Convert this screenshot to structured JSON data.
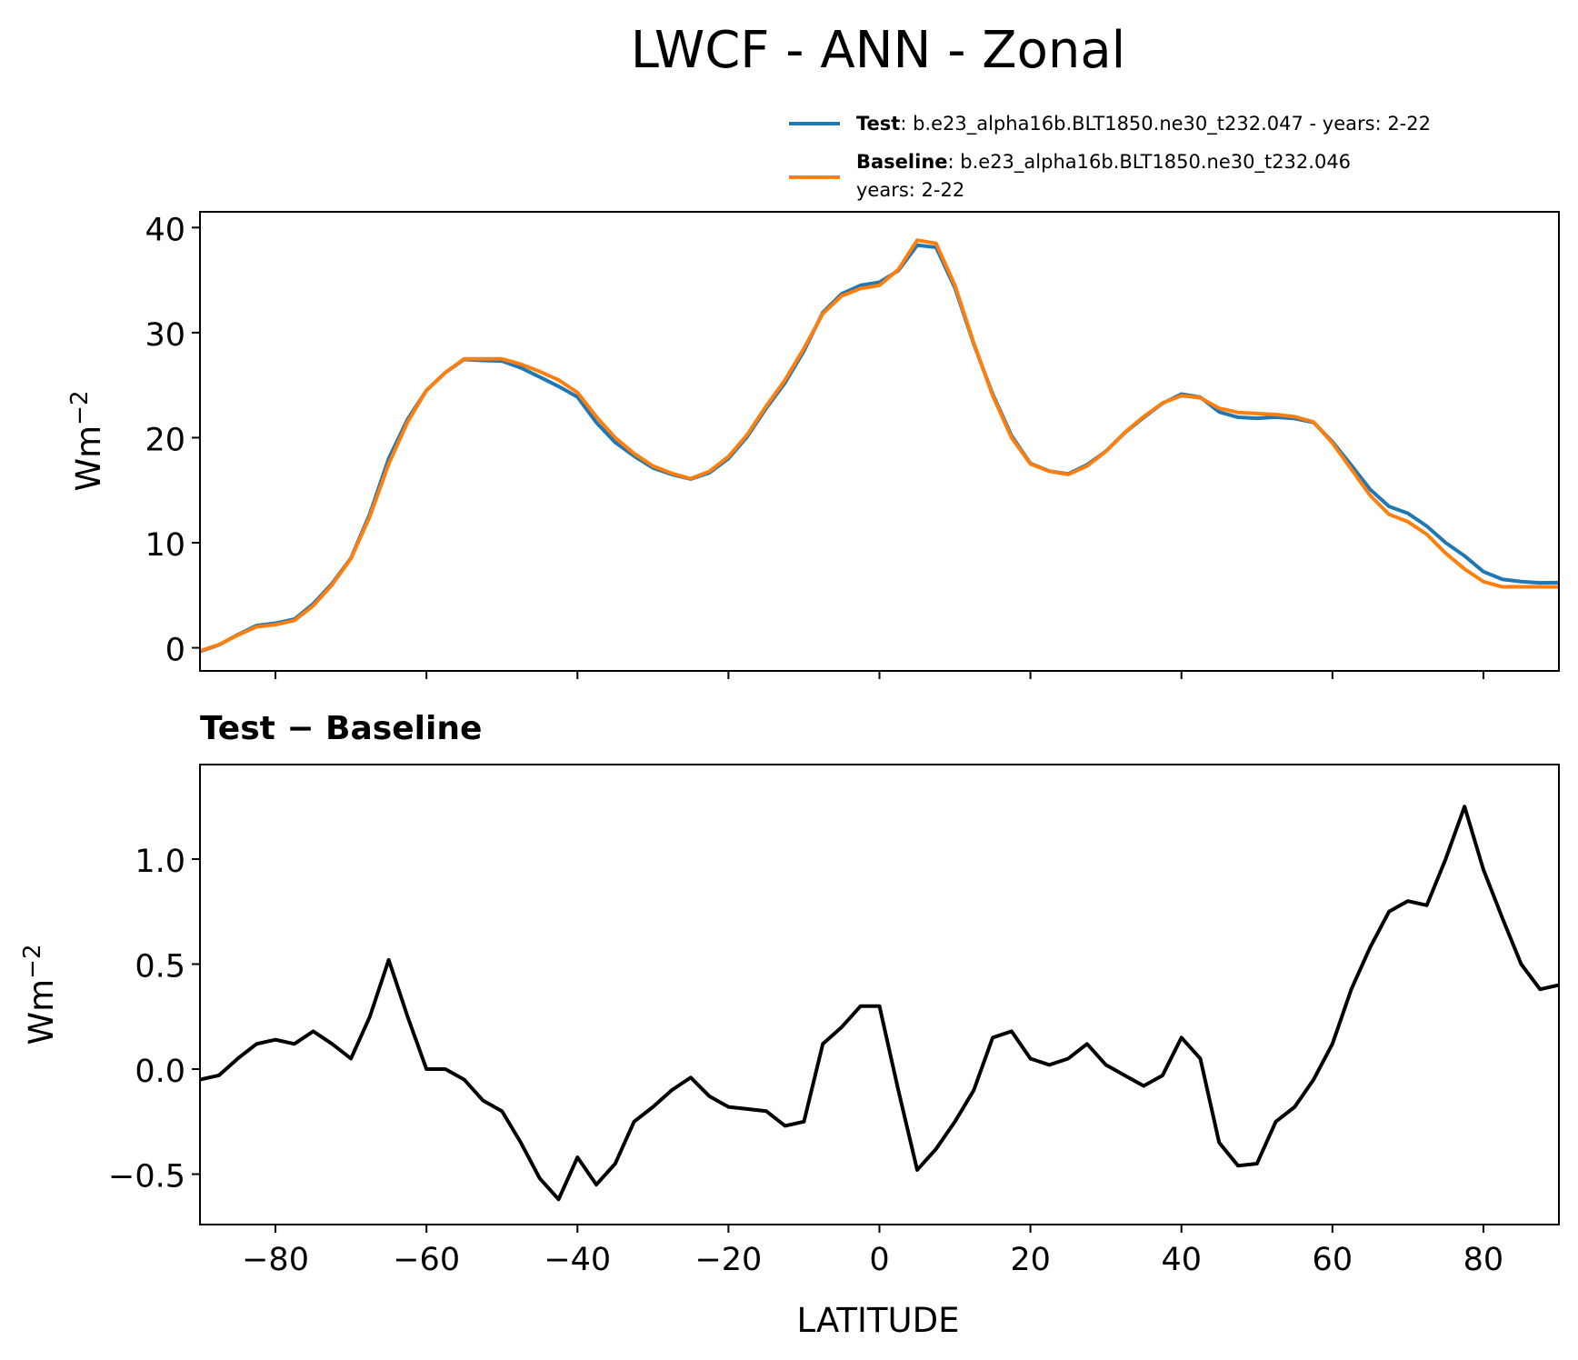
{
  "chart_data": [
    {
      "type": "line",
      "title": "LWCF - ANN - Zonal",
      "ylabel": "Wm",
      "ylabel_sup": "−2",
      "x": [
        -90,
        -87.5,
        -85,
        -82.5,
        -80,
        -77.5,
        -75,
        -72.5,
        -70,
        -67.5,
        -65,
        -62.5,
        -60,
        -57.5,
        -55,
        -52.5,
        -50,
        -47.5,
        -45,
        -42.5,
        -40,
        -37.5,
        -35,
        -32.5,
        -30,
        -27.5,
        -25,
        -22.5,
        -20,
        -17.5,
        -15,
        -12.5,
        -10,
        -7.5,
        -5,
        -2.5,
        0,
        2.5,
        5,
        7.5,
        10,
        12.5,
        15,
        17.5,
        20,
        22.5,
        25,
        27.5,
        30,
        32.5,
        35,
        37.5,
        40,
        42.5,
        45,
        47.5,
        50,
        52.5,
        55,
        57.5,
        60,
        62.5,
        65,
        67.5,
        70,
        72.5,
        75,
        77.5,
        80,
        82.5,
        85,
        87.5,
        90
      ],
      "series": [
        {
          "name": "Test",
          "description": [
            ": b.e23_alpha16b.BLT1850.ne30_t232.047 - years: 2-22"
          ],
          "color": "#1f77b4",
          "values": [
            -0.35,
            0.27,
            1.25,
            2.12,
            2.34,
            2.72,
            4.18,
            6.12,
            8.55,
            12.75,
            18.02,
            21.75,
            24.5,
            26.2,
            27.45,
            27.35,
            27.3,
            26.65,
            25.78,
            24.88,
            23.88,
            21.45,
            19.55,
            18.25,
            17.12,
            16.5,
            16.06,
            16.67,
            18.02,
            20.11,
            22.8,
            25.23,
            28.25,
            31.92,
            33.7,
            34.5,
            34.8,
            35.9,
            38.32,
            38.12,
            34.25,
            28.9,
            24.15,
            20.18,
            17.55,
            16.82,
            16.55,
            17.42,
            18.72,
            20.47,
            21.92,
            23.27,
            24.15,
            23.85,
            22.45,
            21.94,
            21.85,
            21.95,
            21.82,
            21.45,
            19.62,
            17.38,
            15.08,
            13.45,
            12.8,
            11.58,
            10.0,
            8.75,
            7.25,
            6.52,
            6.3,
            6.18,
            6.2
          ]
        },
        {
          "name": "Baseline",
          "description": [
            ": b.e23_alpha16b.BLT1850.ne30_t232.046",
            "years: 2-22"
          ],
          "color": "#ff7f0e",
          "values": [
            -0.3,
            0.3,
            1.2,
            2.0,
            2.2,
            2.6,
            4.0,
            6.0,
            8.5,
            12.5,
            17.5,
            21.5,
            24.5,
            26.2,
            27.5,
            27.5,
            27.5,
            27.0,
            26.3,
            25.5,
            24.3,
            22.0,
            20.0,
            18.5,
            17.3,
            16.6,
            16.1,
            16.8,
            18.2,
            20.3,
            23.0,
            25.5,
            28.5,
            31.8,
            33.5,
            34.2,
            34.5,
            36.0,
            38.8,
            38.5,
            34.5,
            29.0,
            24.0,
            20.0,
            17.5,
            16.8,
            16.5,
            17.3,
            18.7,
            20.5,
            22.0,
            23.3,
            24.0,
            23.8,
            22.8,
            22.4,
            22.3,
            22.2,
            22.0,
            21.5,
            19.5,
            17.0,
            14.5,
            12.7,
            12.0,
            10.8,
            9.0,
            7.5,
            6.3,
            5.8,
            5.8,
            5.8,
            5.8
          ]
        }
      ],
      "xlim": [
        -90,
        90
      ],
      "xticks": [
        -80,
        -60,
        -40,
        -20,
        0,
        20,
        40,
        60,
        80
      ],
      "ylim": [
        -2.2,
        41.5
      ],
      "yticks": [
        0,
        10,
        20,
        30,
        40
      ],
      "legend": "upper right"
    },
    {
      "type": "line",
      "subtitle": "Test − Baseline",
      "ylabel": "Wm",
      "ylabel_sup": "−2",
      "xlabel": "LATITUDE",
      "color": "#000000",
      "x": [
        -90,
        -87.5,
        -85,
        -82.5,
        -80,
        -77.5,
        -75,
        -72.5,
        -70,
        -67.5,
        -65,
        -62.5,
        -60,
        -57.5,
        -55,
        -52.5,
        -50,
        -47.5,
        -45,
        -42.5,
        -40,
        -37.5,
        -35,
        -32.5,
        -30,
        -27.5,
        -25,
        -22.5,
        -20,
        -17.5,
        -15,
        -12.5,
        -10,
        -7.5,
        -5,
        -2.5,
        0,
        2.5,
        5,
        7.5,
        10,
        12.5,
        15,
        17.5,
        20,
        22.5,
        25,
        27.5,
        30,
        32.5,
        35,
        37.5,
        40,
        42.5,
        45,
        47.5,
        50,
        52.5,
        55,
        57.5,
        60,
        62.5,
        65,
        67.5,
        70,
        72.5,
        75,
        77.5,
        80,
        82.5,
        85,
        87.5,
        90
      ],
      "values": [
        -0.05,
        -0.03,
        0.05,
        0.12,
        0.14,
        0.12,
        0.18,
        0.12,
        0.05,
        0.25,
        0.52,
        0.25,
        0.0,
        0.0,
        -0.05,
        -0.15,
        -0.2,
        -0.35,
        -0.52,
        -0.62,
        -0.42,
        -0.55,
        -0.45,
        -0.25,
        -0.18,
        -0.1,
        -0.04,
        -0.13,
        -0.18,
        -0.19,
        -0.2,
        -0.27,
        -0.25,
        0.12,
        0.2,
        0.3,
        0.3,
        -0.1,
        -0.48,
        -0.38,
        -0.25,
        -0.1,
        0.15,
        0.18,
        0.05,
        0.02,
        0.05,
        0.12,
        0.02,
        -0.03,
        -0.08,
        -0.03,
        0.15,
        0.05,
        -0.35,
        -0.46,
        -0.45,
        -0.25,
        -0.18,
        -0.05,
        0.12,
        0.38,
        0.58,
        0.75,
        0.8,
        0.78,
        1.0,
        1.25,
        0.95,
        0.72,
        0.5,
        0.38,
        0.4
      ],
      "xlim": [
        -90,
        90
      ],
      "xticks": [
        {
          "value": -80,
          "label": "−80"
        },
        {
          "value": -60,
          "label": "−60"
        },
        {
          "value": -40,
          "label": "−40"
        },
        {
          "value": -20,
          "label": "−20"
        },
        0,
        20,
        40,
        60,
        80
      ],
      "ylim": [
        -0.74,
        1.45
      ],
      "yticks": [
        {
          "value": -0.5,
          "label": "−0.5"
        },
        {
          "value": 0,
          "label": "0.0"
        },
        0.5,
        {
          "value": 1,
          "label": "1.0"
        }
      ]
    }
  ]
}
